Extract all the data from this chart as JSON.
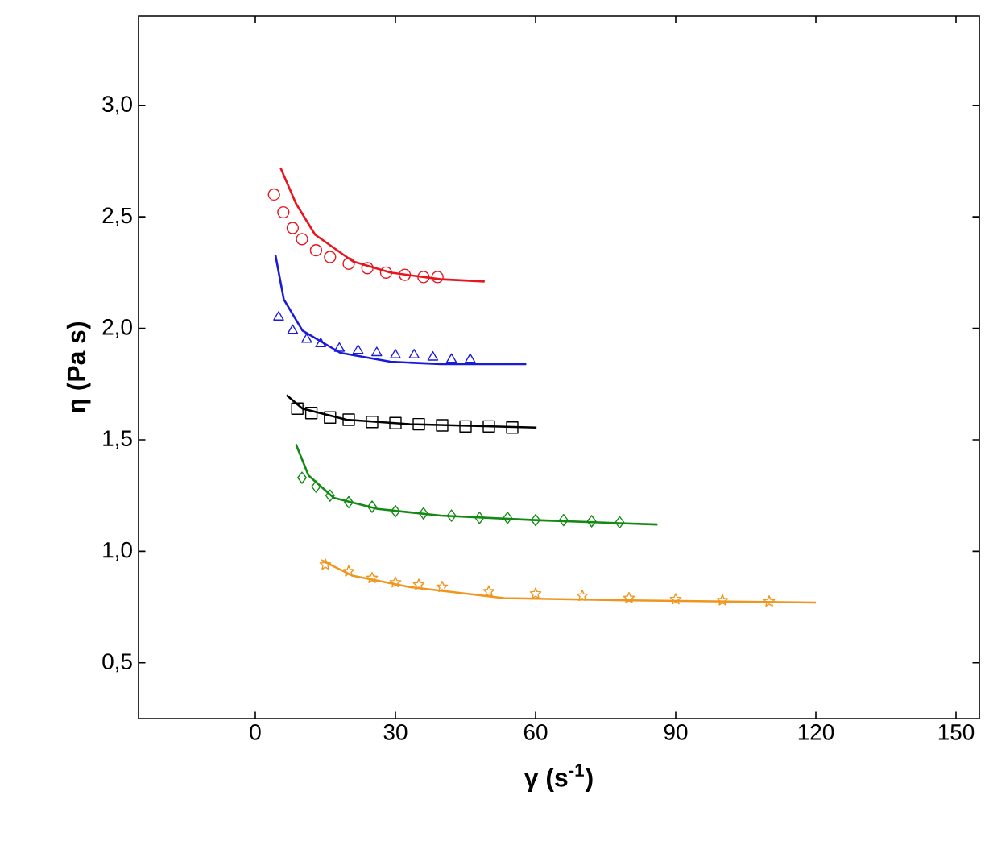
{
  "chart_data": {
    "type": "scatter",
    "xlabel": "γ (s$^{-1}$)",
    "ylabel": "η (Pa s)",
    "xlim": [
      -25,
      155
    ],
    "ylim": [
      0.25,
      3.4
    ],
    "xticks": [
      0,
      30,
      60,
      90,
      120,
      150
    ],
    "yticks": [
      {
        "value": 0.5,
        "label": "0,5"
      },
      {
        "value": 1.0,
        "label": "1,0"
      },
      {
        "value": 1.5,
        "label": "1,5"
      },
      {
        "value": 2.0,
        "label": "2,0"
      },
      {
        "value": 2.5,
        "label": "2,5"
      },
      {
        "value": 3.0,
        "label": "3,0"
      }
    ],
    "series": [
      {
        "type": "scatter",
        "marker": "circle",
        "color": "#e8141e",
        "x": [
          4,
          6,
          8,
          10,
          13,
          16,
          20,
          24,
          28,
          32,
          36,
          39
        ],
        "values": [
          2.6,
          2.52,
          2.45,
          2.4,
          2.35,
          2.32,
          2.29,
          2.27,
          2.25,
          2.24,
          2.23,
          2.23
        ]
      },
      {
        "type": "line",
        "color": "#e8141e",
        "x": [
          5.4,
          8.7,
          12.8,
          20.9,
          28.9,
          39.7,
          49.1
        ],
        "values": [
          2.72,
          2.56,
          2.42,
          2.3,
          2.25,
          2.22,
          2.21
        ]
      },
      {
        "type": "scatter",
        "marker": "triangle",
        "color": "#1a1adc",
        "x": [
          5,
          8,
          11,
          14,
          18,
          22,
          26,
          30,
          34,
          38,
          42,
          46
        ],
        "values": [
          2.05,
          1.99,
          1.95,
          1.93,
          1.91,
          1.9,
          1.89,
          1.88,
          1.88,
          1.87,
          1.86,
          1.86
        ]
      },
      {
        "type": "line",
        "color": "#1a1adc",
        "x": [
          4.3,
          6.1,
          10.1,
          18.2,
          28.9,
          39.7,
          58
        ],
        "values": [
          2.33,
          2.13,
          1.99,
          1.89,
          1.85,
          1.84,
          1.84
        ]
      },
      {
        "type": "scatter",
        "marker": "square",
        "color": "#000000",
        "x": [
          9,
          12,
          16,
          20,
          25,
          30,
          35,
          40,
          45,
          50,
          55
        ],
        "values": [
          1.64,
          1.62,
          1.6,
          1.59,
          1.58,
          1.575,
          1.57,
          1.565,
          1.56,
          1.56,
          1.555
        ]
      },
      {
        "type": "line",
        "color": "#000000",
        "x": [
          6.7,
          10.1,
          19.5,
          33,
          60.2
        ],
        "values": [
          1.7,
          1.64,
          1.59,
          1.57,
          1.555
        ]
      },
      {
        "type": "scatter",
        "marker": "diamond",
        "color": "#138a13",
        "x": [
          10,
          13,
          16,
          20,
          25,
          30,
          36,
          42,
          48,
          54,
          60,
          66,
          72,
          78
        ],
        "values": [
          1.33,
          1.29,
          1.25,
          1.22,
          1.2,
          1.18,
          1.17,
          1.16,
          1.15,
          1.15,
          1.14,
          1.14,
          1.135,
          1.13
        ]
      },
      {
        "type": "line",
        "color": "#138a13",
        "x": [
          8.7,
          11.4,
          16.8,
          26.2,
          39.7,
          59.9,
          86.1
        ],
        "values": [
          1.48,
          1.34,
          1.24,
          1.19,
          1.16,
          1.14,
          1.12
        ]
      },
      {
        "type": "scatter",
        "marker": "star",
        "color": "#f0961e",
        "x": [
          15,
          20,
          25,
          30,
          35,
          40,
          50,
          60,
          70,
          80,
          90,
          100,
          110
        ],
        "values": [
          0.94,
          0.91,
          0.88,
          0.86,
          0.85,
          0.84,
          0.82,
          0.81,
          0.8,
          0.79,
          0.785,
          0.78,
          0.775
        ]
      },
      {
        "type": "line",
        "color": "#f0961e",
        "x": [
          14.1,
          20.9,
          33,
          53.2,
          80,
          120
        ],
        "values": [
          0.96,
          0.89,
          0.84,
          0.79,
          0.78,
          0.77
        ]
      }
    ]
  }
}
